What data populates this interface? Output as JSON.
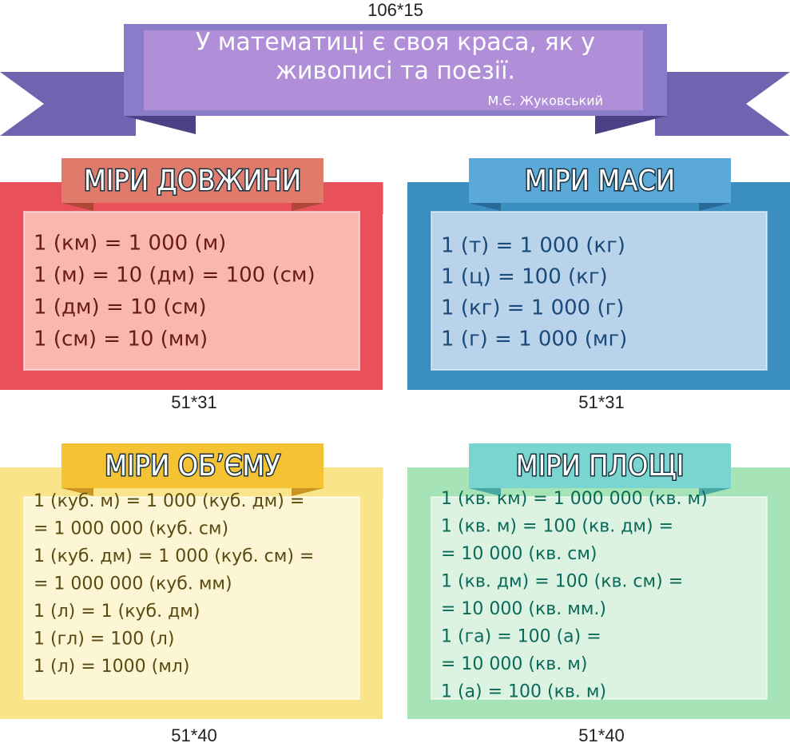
{
  "header": {
    "size": "106*15",
    "quote": [
      "У математиці є своя краса, як у",
      "живописі та поезії."
    ],
    "author": "М.Є. Жуковський"
  },
  "panels": [
    {
      "title": "МІРИ ДОВЖИНИ",
      "size": "51*31",
      "lines": [
        "1 (км) = 1 000 (м)",
        "1 (м) = 10 (дм) = 100 (см)",
        "1 (дм) = 10 (см)",
        "1 (см) = 10 (мм)"
      ]
    },
    {
      "title": "МІРИ МАСИ",
      "size": "51*31",
      "lines": [
        "1 (т) = 1 000 (кг)",
        "1 (ц) = 100 (кг)",
        "1 (кг) = 1 000 (г)",
        "1 (г) = 1 000 (мг)"
      ]
    },
    {
      "title": "МІРИ ОБ’ЄМУ",
      "size": "51*40",
      "lines": [
        "1 (куб. м) = 1 000 (куб. дм) =",
        "= 1 000 000 (куб. см)",
        "1 (куб. дм) = 1 000 (куб. см) =",
        "= 1 000 000 (куб. мм)",
        "1 (л) = 1 (куб. дм)",
        "1 (гл) = 100 (л)",
        "1 (л) = 1000 (мл)"
      ]
    },
    {
      "title": "МІРИ ПЛОЩІ",
      "size": "51*40",
      "lines": [
        "1 (кв. км) = 1 000 000 (кв. м)",
        "1 (кв. м) = 100 (кв. дм) =",
        "= 10 000 (кв. см)",
        "1 (кв. дм) = 100 (кв. см) =",
        "= 10 000 (кв. мм.)",
        "1 (га) = 100 (а) =",
        "= 10 000 (кв. м)",
        "1 (а) = 100 (кв. м)"
      ]
    }
  ]
}
